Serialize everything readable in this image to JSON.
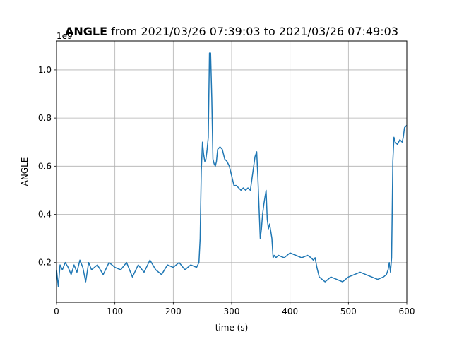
{
  "chart_data": {
    "type": "line",
    "title_bold": "ANGLE",
    "title_rest": " from 2021/03/26 07:39:03 to 2021/03/26 07:49:03",
    "xlabel": "time (s)",
    "ylabel": "ANGLE",
    "y_offset_label": "1e9",
    "x_ticks": [
      0,
      100,
      200,
      300,
      400,
      500,
      600
    ],
    "y_ticks": [
      0.2,
      0.4,
      0.6,
      0.8,
      1.0
    ],
    "y_tick_labels": [
      "0.2",
      "0.4",
      "0.6",
      "0.8",
      "1.0"
    ],
    "xlim": [
      0,
      600
    ],
    "ylim": [
      0.035,
      1.12
    ],
    "grid": true,
    "line_color": "#1f77b4",
    "series": [
      {
        "x": [
          0,
          3,
          6,
          10,
          15,
          20,
          25,
          30,
          35,
          40,
          45,
          50,
          55,
          60,
          70,
          80,
          90,
          100,
          110,
          120,
          130,
          140,
          150,
          160,
          170,
          180,
          190,
          200,
          210,
          220,
          230,
          240,
          244,
          246,
          248,
          250,
          252,
          254,
          256,
          258,
          260,
          262,
          264,
          266,
          268,
          270,
          272,
          274,
          276,
          280,
          284,
          288,
          292,
          296,
          300,
          304,
          308,
          312,
          316,
          320,
          324,
          328,
          332,
          336,
          340,
          343,
          345,
          347,
          349,
          351,
          353,
          355,
          357,
          359,
          361,
          363,
          365,
          367,
          369,
          371,
          373,
          376,
          380,
          390,
          400,
          410,
          420,
          430,
          436,
          440,
          443,
          446,
          450,
          455,
          460,
          470,
          480,
          490,
          500,
          510,
          520,
          530,
          540,
          550,
          560,
          565,
          568,
          570,
          572,
          574,
          576,
          578,
          580,
          584,
          588,
          592,
          594,
          596,
          600
        ],
        "y": [
          0.17,
          0.1,
          0.19,
          0.17,
          0.2,
          0.18,
          0.15,
          0.19,
          0.16,
          0.21,
          0.18,
          0.12,
          0.2,
          0.17,
          0.19,
          0.15,
          0.2,
          0.18,
          0.17,
          0.2,
          0.14,
          0.19,
          0.16,
          0.21,
          0.17,
          0.15,
          0.19,
          0.18,
          0.2,
          0.17,
          0.19,
          0.18,
          0.2,
          0.3,
          0.58,
          0.7,
          0.65,
          0.62,
          0.63,
          0.67,
          0.72,
          1.07,
          1.07,
          0.88,
          0.63,
          0.61,
          0.6,
          0.62,
          0.67,
          0.68,
          0.67,
          0.63,
          0.62,
          0.6,
          0.56,
          0.52,
          0.52,
          0.51,
          0.5,
          0.51,
          0.5,
          0.51,
          0.5,
          0.57,
          0.64,
          0.66,
          0.55,
          0.42,
          0.3,
          0.34,
          0.4,
          0.44,
          0.47,
          0.5,
          0.38,
          0.34,
          0.36,
          0.33,
          0.3,
          0.22,
          0.23,
          0.22,
          0.23,
          0.22,
          0.24,
          0.23,
          0.22,
          0.23,
          0.22,
          0.21,
          0.22,
          0.18,
          0.14,
          0.13,
          0.12,
          0.14,
          0.13,
          0.12,
          0.14,
          0.15,
          0.16,
          0.15,
          0.14,
          0.13,
          0.14,
          0.15,
          0.17,
          0.2,
          0.16,
          0.22,
          0.62,
          0.72,
          0.7,
          0.69,
          0.71,
          0.7,
          0.72,
          0.76,
          0.77
        ]
      }
    ]
  }
}
